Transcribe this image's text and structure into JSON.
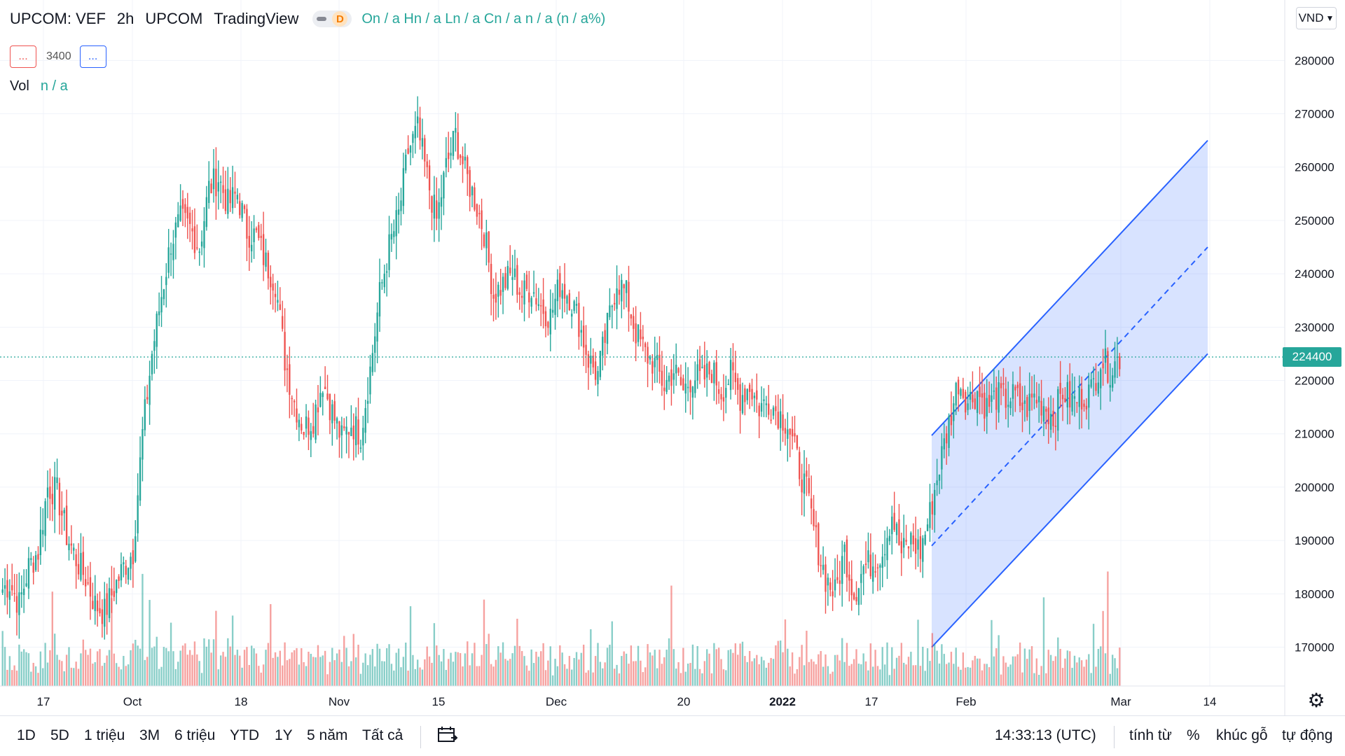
{
  "header": {
    "symbol": "UPCOM: VEF",
    "interval": "2h",
    "exchange": "UPCOM",
    "provider": "TradingView",
    "badge": "D",
    "ohlc": "On / a  Hn / a  Ln / a  Cn / a  n / a (n / a%)"
  },
  "indicator": {
    "left": "...",
    "value": "3400",
    "right": "..."
  },
  "volume": {
    "label": "Vol",
    "value": "n / a"
  },
  "currency": "VND",
  "last_price_label": "224400",
  "price_axis": [
    "280000",
    "270000",
    "260000",
    "250000",
    "240000",
    "230000",
    "220000",
    "210000",
    "200000",
    "190000",
    "180000",
    "170000"
  ],
  "time_axis": [
    "17",
    "Oct",
    "18",
    "Nov",
    "15",
    "Dec",
    "20",
    "2022",
    "17",
    "Feb",
    "Mar",
    "14"
  ],
  "bottom": {
    "ranges": [
      "1D",
      "5D",
      "1 triệu",
      "3M",
      "6 triệu",
      "YTD",
      "1Y",
      "5 năm",
      "Tất cả"
    ],
    "time": "14:33:13 (UTC)",
    "options": [
      "tính từ",
      "%",
      "khúc gỗ",
      "tự động"
    ]
  },
  "colors": {
    "up": "#26a69a",
    "down": "#ef5350",
    "channel": "#2962ff"
  },
  "chart_data": {
    "type": "candlestick",
    "y_range": [
      165000,
      290000
    ],
    "last_price": 224400,
    "segments": [
      [
        180500,
        182000,
        178000,
        185000,
        188000,
        200000,
        199000,
        191000,
        186500,
        183000,
        178000,
        176500,
        181000,
        185000,
        188000
      ],
      [
        188000,
        210000,
        225000,
        236000,
        246000,
        250000,
        248500,
        245000,
        256000,
        258000,
        253000,
        255000
      ],
      [
        255000,
        248000,
        247000,
        242000,
        238500
      ],
      [
        238500,
        224000,
        216000,
        211000,
        213000,
        220000,
        214000,
        209000,
        212000,
        210000
      ],
      [
        210000,
        222000,
        236000,
        245000,
        251000,
        263000,
        267000,
        258000,
        250000,
        260000,
        266000,
        259000,
        254000,
        248000
      ],
      [
        248000,
        236000,
        238000,
        240000,
        236000,
        237500,
        234000,
        232000,
        238000,
        236000,
        231000,
        224000,
        221000,
        230000,
        239000,
        236000,
        229000,
        225000,
        223000
      ],
      [
        223000,
        219000,
        222000,
        218000,
        221000,
        220000,
        222000,
        218000,
        221000,
        217000,
        219000,
        215000,
        216000,
        214000,
        212000,
        205000,
        199000,
        190000,
        183000,
        180000,
        188000
      ],
      [
        188000,
        180000,
        185000,
        186000,
        188000,
        195000,
        187500,
        190000,
        188000
      ],
      [
        188000,
        195000,
        204000,
        212000,
        220000,
        216000,
        218000,
        215000,
        217000,
        216500,
        217000,
        214500,
        217000,
        215500,
        213000,
        218000,
        216000,
        217000,
        218000,
        224000,
        222000,
        224400
      ]
    ],
    "volume_range": [
      0,
      200000
    ],
    "channel": {
      "start": {
        "date": "2022-01-27",
        "upper": 209700,
        "middle": 189000,
        "lower": 170000
      },
      "end": {
        "date": "2022-03-14",
        "upper": 265000,
        "middle": 245000,
        "lower": 225000
      }
    }
  }
}
